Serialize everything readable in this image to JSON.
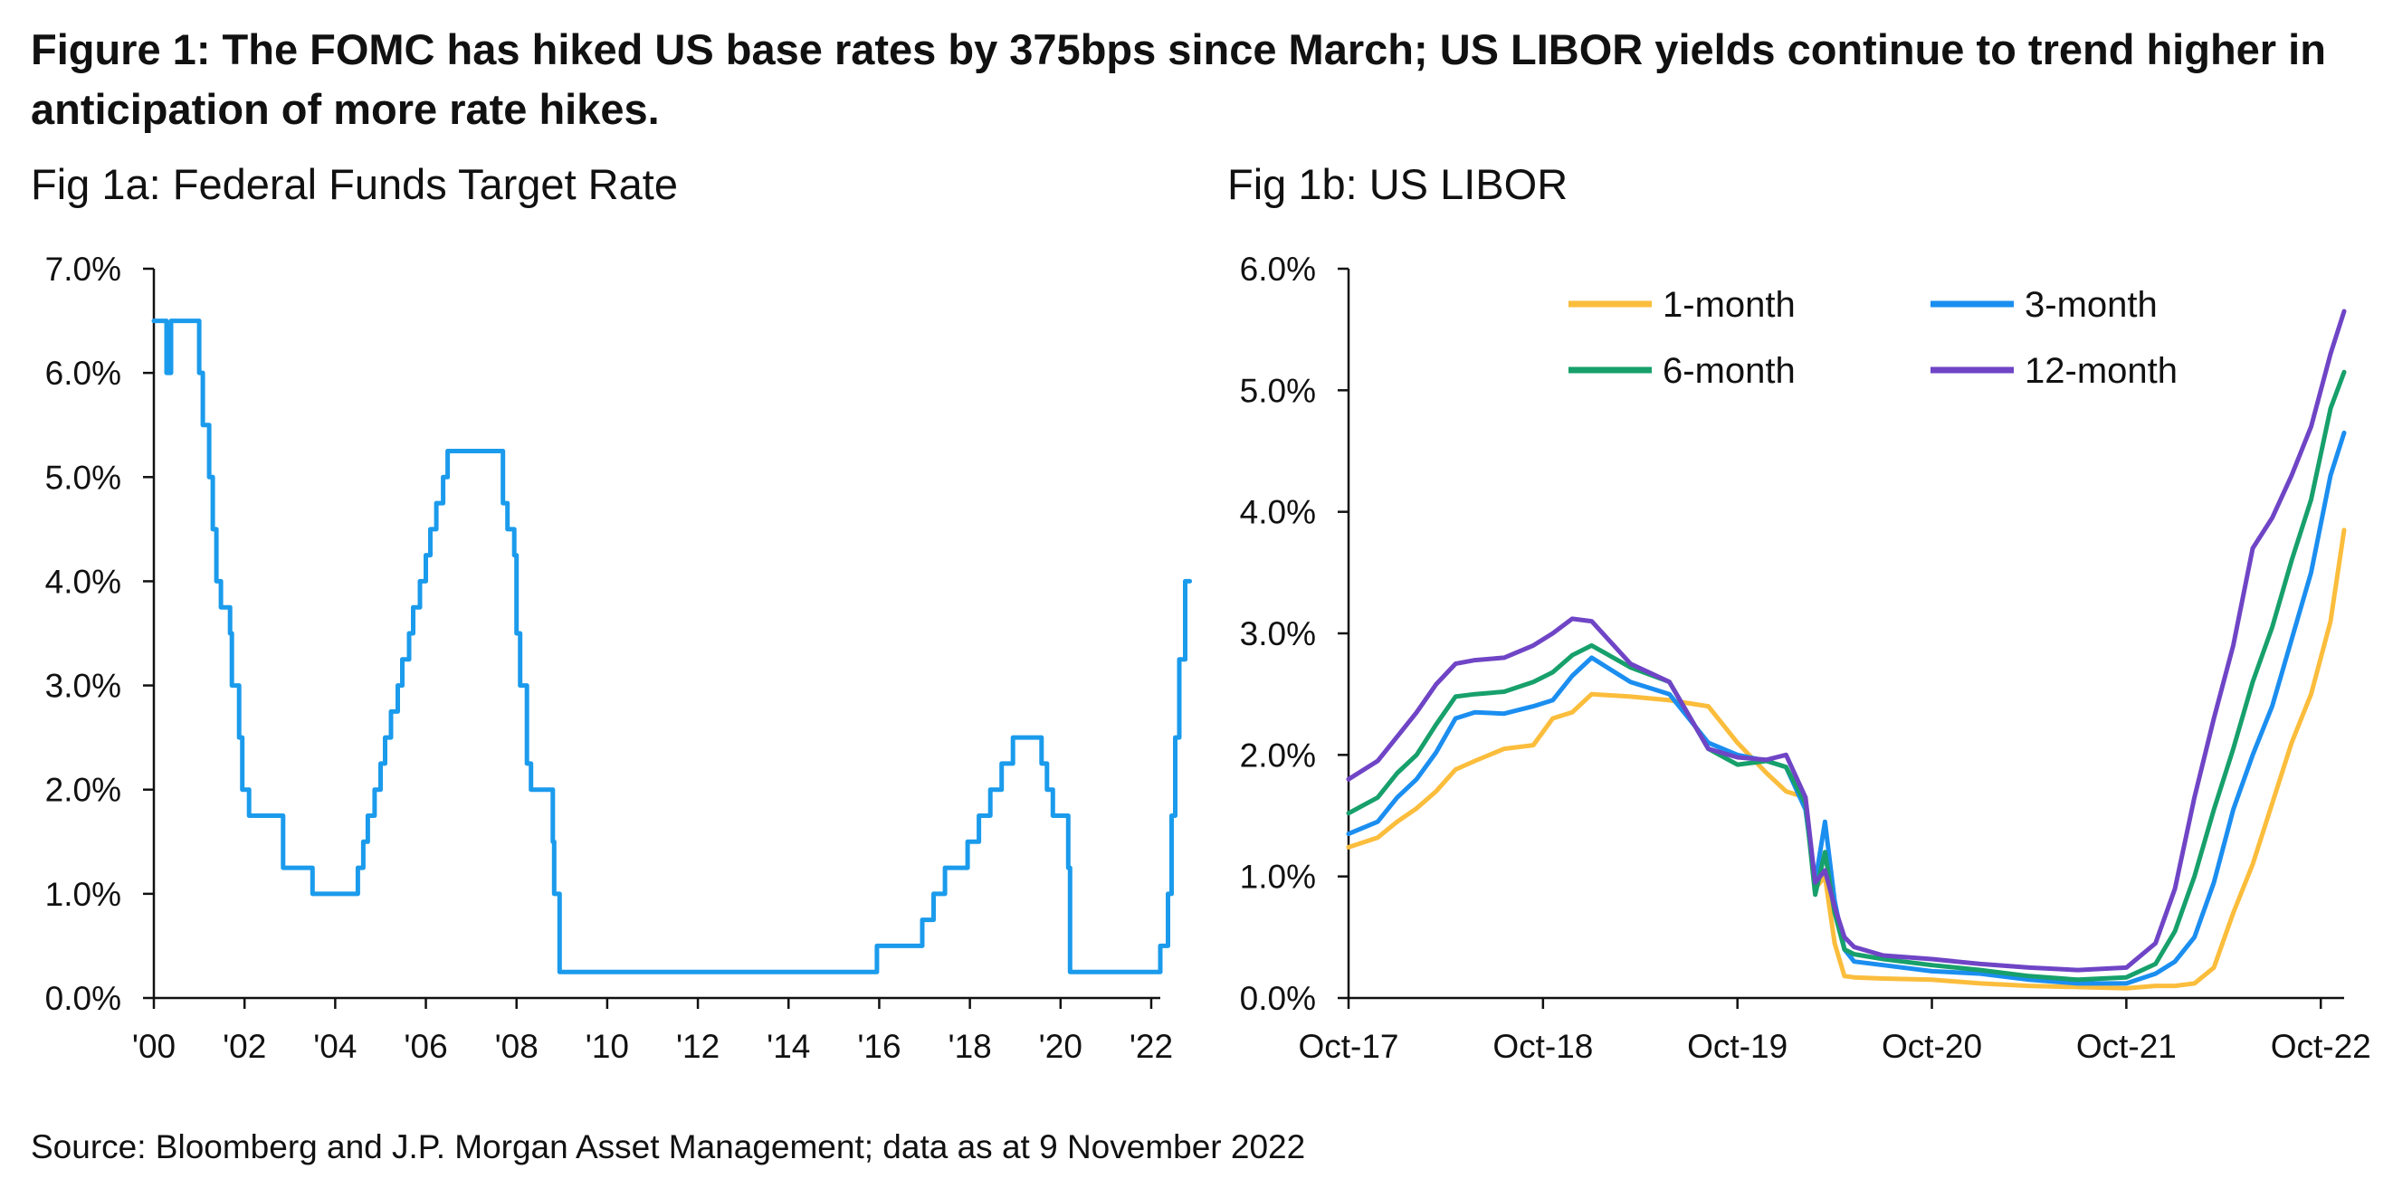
{
  "figure_title": "Figure 1: The FOMC has hiked US base rates by 375bps since March; US LIBOR yields continue to trend higher in anticipation of more rate hikes.",
  "source": "Source: Bloomberg and J.P. Morgan Asset Management; data as at 9 November 2022",
  "colors": {
    "fed_line": "#1b9bec",
    "libor_1m": "#fbbd3c",
    "libor_3m": "#1b8ef0",
    "libor_6m": "#17a06b",
    "libor_12m": "#6f45c6",
    "axis": "#111111"
  },
  "chart_data": [
    {
      "id": "fig1a",
      "type": "line",
      "title": "Fig 1a: Federal Funds Target Rate",
      "xlabel": "",
      "ylabel": "",
      "xlim": [
        2000,
        2022.2
      ],
      "ylim": [
        0,
        7
      ],
      "yticks": [
        0,
        1,
        2,
        3,
        4,
        5,
        6,
        7
      ],
      "ytick_labels": [
        "0.0%",
        "1.0%",
        "2.0%",
        "3.0%",
        "4.0%",
        "5.0%",
        "6.0%",
        "7.0%"
      ],
      "xticks": [
        2000,
        2002,
        2004,
        2006,
        2008,
        2010,
        2012,
        2014,
        2016,
        2018,
        2020,
        2022
      ],
      "xtick_labels": [
        "'00",
        "'02",
        "'04",
        "'06",
        "'08",
        "'10",
        "'12",
        "'14",
        "'16",
        "'18",
        "'20",
        "'22"
      ],
      "grid": false,
      "series": [
        {
          "color_key": "fed_line",
          "step": true,
          "x": [
            2000.0,
            2000.28,
            2000.38,
            2001.0,
            2001.08,
            2001.22,
            2001.3,
            2001.38,
            2001.48,
            2001.68,
            2001.72,
            2001.88,
            2001.95,
            2002.1,
            2002.85,
            2003.5,
            2004.5,
            2004.62,
            2004.72,
            2004.87,
            2005.0,
            2005.1,
            2005.23,
            2005.38,
            2005.48,
            2005.63,
            2005.72,
            2005.87,
            2006.0,
            2006.1,
            2006.23,
            2006.38,
            2006.48,
            2007.7,
            2007.8,
            2007.95,
            2008.0,
            2008.08,
            2008.23,
            2008.32,
            2008.8,
            2008.83,
            2008.95,
            2015.95,
            2016.95,
            2017.2,
            2017.45,
            2017.95,
            2018.2,
            2018.45,
            2018.7,
            2018.95,
            2019.58,
            2019.7,
            2019.83,
            2020.17,
            2020.21,
            2022.2,
            2022.37,
            2022.45,
            2022.53,
            2022.62,
            2022.75,
            2022.85
          ],
          "y": [
            6.5,
            6.0,
            6.5,
            6.0,
            5.5,
            5.0,
            4.5,
            4.0,
            3.75,
            3.5,
            3.0,
            2.5,
            2.0,
            1.75,
            1.25,
            1.0,
            1.25,
            1.5,
            1.75,
            2.0,
            2.25,
            2.5,
            2.75,
            3.0,
            3.25,
            3.5,
            3.75,
            4.0,
            4.25,
            4.5,
            4.75,
            5.0,
            5.25,
            4.75,
            4.5,
            4.25,
            3.5,
            3.0,
            2.25,
            2.0,
            1.5,
            1.0,
            0.25,
            0.5,
            0.75,
            1.0,
            1.25,
            1.5,
            1.75,
            2.0,
            2.25,
            2.5,
            2.25,
            2.0,
            1.75,
            1.25,
            0.25,
            0.5,
            1.0,
            1.75,
            2.5,
            3.25,
            4.0,
            4.0
          ]
        }
      ]
    },
    {
      "id": "fig1b",
      "type": "line",
      "title": "Fig 1b: US LIBOR",
      "xlabel": "",
      "ylabel": "",
      "xlim": [
        2017.75,
        2022.87
      ],
      "ylim": [
        0,
        6
      ],
      "yticks": [
        0,
        1,
        2,
        3,
        4,
        5,
        6
      ],
      "ytick_labels": [
        "0.0%",
        "1.0%",
        "2.0%",
        "3.0%",
        "4.0%",
        "5.0%",
        "6.0%"
      ],
      "xticks": [
        2017.75,
        2018.75,
        2019.75,
        2020.75,
        2021.75,
        2022.75
      ],
      "xtick_labels": [
        "Oct-17",
        "Oct-18",
        "Oct-19",
        "Oct-20",
        "Oct-21",
        "Oct-22"
      ],
      "grid": false,
      "legend_placement": "top",
      "series": [
        {
          "name": "1-month",
          "color_key": "libor_1m",
          "x": [
            2017.75,
            2017.9,
            2018.0,
            2018.1,
            2018.2,
            2018.3,
            2018.4,
            2018.55,
            2018.7,
            2018.8,
            2018.9,
            2019.0,
            2019.2,
            2019.4,
            2019.6,
            2019.75,
            2019.9,
            2020.0,
            2020.1,
            2020.15,
            2020.2,
            2020.25,
            2020.3,
            2020.35,
            2020.5,
            2020.75,
            2021.0,
            2021.25,
            2021.5,
            2021.75,
            2021.9,
            2022.0,
            2022.1,
            2022.2,
            2022.3,
            2022.4,
            2022.5,
            2022.6,
            2022.7,
            2022.8,
            2022.87
          ],
          "y": [
            1.24,
            1.32,
            1.45,
            1.56,
            1.7,
            1.88,
            1.95,
            2.05,
            2.08,
            2.3,
            2.35,
            2.5,
            2.48,
            2.45,
            2.4,
            2.1,
            1.85,
            1.7,
            1.65,
            0.9,
            1.0,
            0.45,
            0.18,
            0.17,
            0.16,
            0.15,
            0.12,
            0.1,
            0.09,
            0.08,
            0.1,
            0.1,
            0.12,
            0.25,
            0.7,
            1.1,
            1.6,
            2.1,
            2.5,
            3.1,
            3.85
          ]
        },
        {
          "name": "3-month",
          "color_key": "libor_3m",
          "x": [
            2017.75,
            2017.9,
            2018.0,
            2018.1,
            2018.2,
            2018.3,
            2018.4,
            2018.55,
            2018.7,
            2018.8,
            2018.9,
            2019.0,
            2019.2,
            2019.4,
            2019.6,
            2019.75,
            2019.9,
            2020.0,
            2020.1,
            2020.15,
            2020.2,
            2020.25,
            2020.3,
            2020.35,
            2020.5,
            2020.75,
            2021.0,
            2021.25,
            2021.5,
            2021.75,
            2021.9,
            2022.0,
            2022.1,
            2022.2,
            2022.3,
            2022.4,
            2022.5,
            2022.6,
            2022.7,
            2022.8,
            2022.87
          ],
          "y": [
            1.35,
            1.45,
            1.65,
            1.8,
            2.02,
            2.3,
            2.35,
            2.34,
            2.4,
            2.45,
            2.65,
            2.8,
            2.6,
            2.5,
            2.1,
            2.0,
            1.95,
            1.9,
            1.55,
            0.95,
            1.45,
            0.8,
            0.4,
            0.3,
            0.27,
            0.22,
            0.2,
            0.15,
            0.12,
            0.12,
            0.2,
            0.3,
            0.5,
            0.95,
            1.55,
            2.0,
            2.4,
            2.95,
            3.5,
            4.3,
            4.65
          ]
        },
        {
          "name": "6-month",
          "color_key": "libor_6m",
          "x": [
            2017.75,
            2017.9,
            2018.0,
            2018.1,
            2018.2,
            2018.3,
            2018.4,
            2018.55,
            2018.7,
            2018.8,
            2018.9,
            2019.0,
            2019.2,
            2019.4,
            2019.6,
            2019.75,
            2019.9,
            2020.0,
            2020.1,
            2020.15,
            2020.2,
            2020.25,
            2020.3,
            2020.35,
            2020.5,
            2020.75,
            2021.0,
            2021.25,
            2021.5,
            2021.75,
            2021.9,
            2022.0,
            2022.1,
            2022.2,
            2022.3,
            2022.4,
            2022.5,
            2022.6,
            2022.7,
            2022.8,
            2022.87
          ],
          "y": [
            1.52,
            1.65,
            1.85,
            2.0,
            2.25,
            2.48,
            2.5,
            2.52,
            2.6,
            2.68,
            2.82,
            2.9,
            2.72,
            2.6,
            2.05,
            1.92,
            1.95,
            1.9,
            1.6,
            0.85,
            1.2,
            0.7,
            0.4,
            0.36,
            0.32,
            0.27,
            0.23,
            0.18,
            0.15,
            0.17,
            0.28,
            0.55,
            1.0,
            1.55,
            2.05,
            2.6,
            3.05,
            3.6,
            4.1,
            4.85,
            5.15
          ]
        },
        {
          "name": "12-month",
          "color_key": "libor_12m",
          "x": [
            2017.75,
            2017.9,
            2018.0,
            2018.1,
            2018.2,
            2018.3,
            2018.4,
            2018.55,
            2018.7,
            2018.8,
            2018.9,
            2019.0,
            2019.2,
            2019.4,
            2019.6,
            2019.75,
            2019.9,
            2020.0,
            2020.1,
            2020.15,
            2020.2,
            2020.25,
            2020.3,
            2020.35,
            2020.5,
            2020.75,
            2021.0,
            2021.25,
            2021.5,
            2021.75,
            2021.9,
            2022.0,
            2022.1,
            2022.2,
            2022.3,
            2022.4,
            2022.5,
            2022.6,
            2022.7,
            2022.8,
            2022.87
          ],
          "y": [
            1.8,
            1.95,
            2.15,
            2.35,
            2.58,
            2.75,
            2.78,
            2.8,
            2.9,
            3.0,
            3.12,
            3.1,
            2.75,
            2.6,
            2.05,
            1.98,
            1.96,
            2.0,
            1.65,
            0.95,
            1.05,
            0.75,
            0.5,
            0.42,
            0.35,
            0.32,
            0.28,
            0.25,
            0.23,
            0.25,
            0.45,
            0.9,
            1.65,
            2.3,
            2.9,
            3.7,
            3.95,
            4.3,
            4.7,
            5.3,
            5.65
          ]
        }
      ]
    }
  ]
}
